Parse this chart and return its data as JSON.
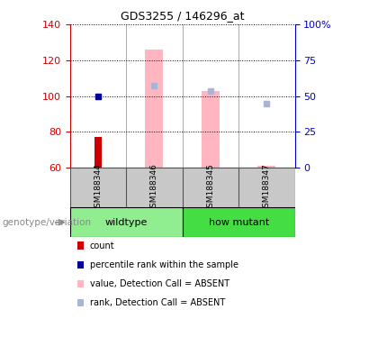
{
  "title": "GDS3255 / 146296_at",
  "samples": [
    "GSM188344",
    "GSM188346",
    "GSM188345",
    "GSM188347"
  ],
  "groups": [
    {
      "name": "wildtype",
      "color": "#90ee90",
      "start": 0,
      "end": 1
    },
    {
      "name": "how mutant",
      "color": "#44dd44",
      "start": 2,
      "end": 3
    }
  ],
  "ylim_left": [
    60,
    140
  ],
  "ylim_right": [
    0,
    100
  ],
  "yticks_left": [
    60,
    80,
    100,
    120,
    140
  ],
  "yticks_right": [
    0,
    25,
    50,
    75,
    100
  ],
  "ytick_labels_right": [
    "0",
    "25",
    "50",
    "75",
    "100%"
  ],
  "red_bars": {
    "GSM188344": 77,
    "GSM188346": null,
    "GSM188345": null,
    "GSM188347": null
  },
  "blue_dots": {
    "GSM188344": 100,
    "GSM188346": null,
    "GSM188345": null,
    "GSM188347": null
  },
  "pink_bars": {
    "GSM188344": null,
    "GSM188346": 126,
    "GSM188345": 103,
    "GSM188347": 61
  },
  "light_blue_dots": {
    "GSM188344": null,
    "GSM188346": 106,
    "GSM188345": 103,
    "GSM188347": 96
  },
  "red_bar_width": 0.13,
  "pink_bar_width": 0.32,
  "group_label": "genotype/variation",
  "legend_items": [
    {
      "label": "count",
      "color": "#cc0000"
    },
    {
      "label": "percentile rank within the sample",
      "color": "#000099"
    },
    {
      "label": "value, Detection Call = ABSENT",
      "color": "#ffb6c1"
    },
    {
      "label": "rank, Detection Call = ABSENT",
      "color": "#aab4d4"
    }
  ],
  "left_axis_color": "#cc0000",
  "right_axis_color": "#0000cc",
  "sample_box_color": "#c8c8c8",
  "sample_box_edge": "#555555",
  "title_fontsize": 9,
  "axis_fontsize": 8,
  "sample_fontsize": 6.5,
  "group_fontsize": 8,
  "legend_fontsize": 7,
  "genotype_label_fontsize": 7.5
}
